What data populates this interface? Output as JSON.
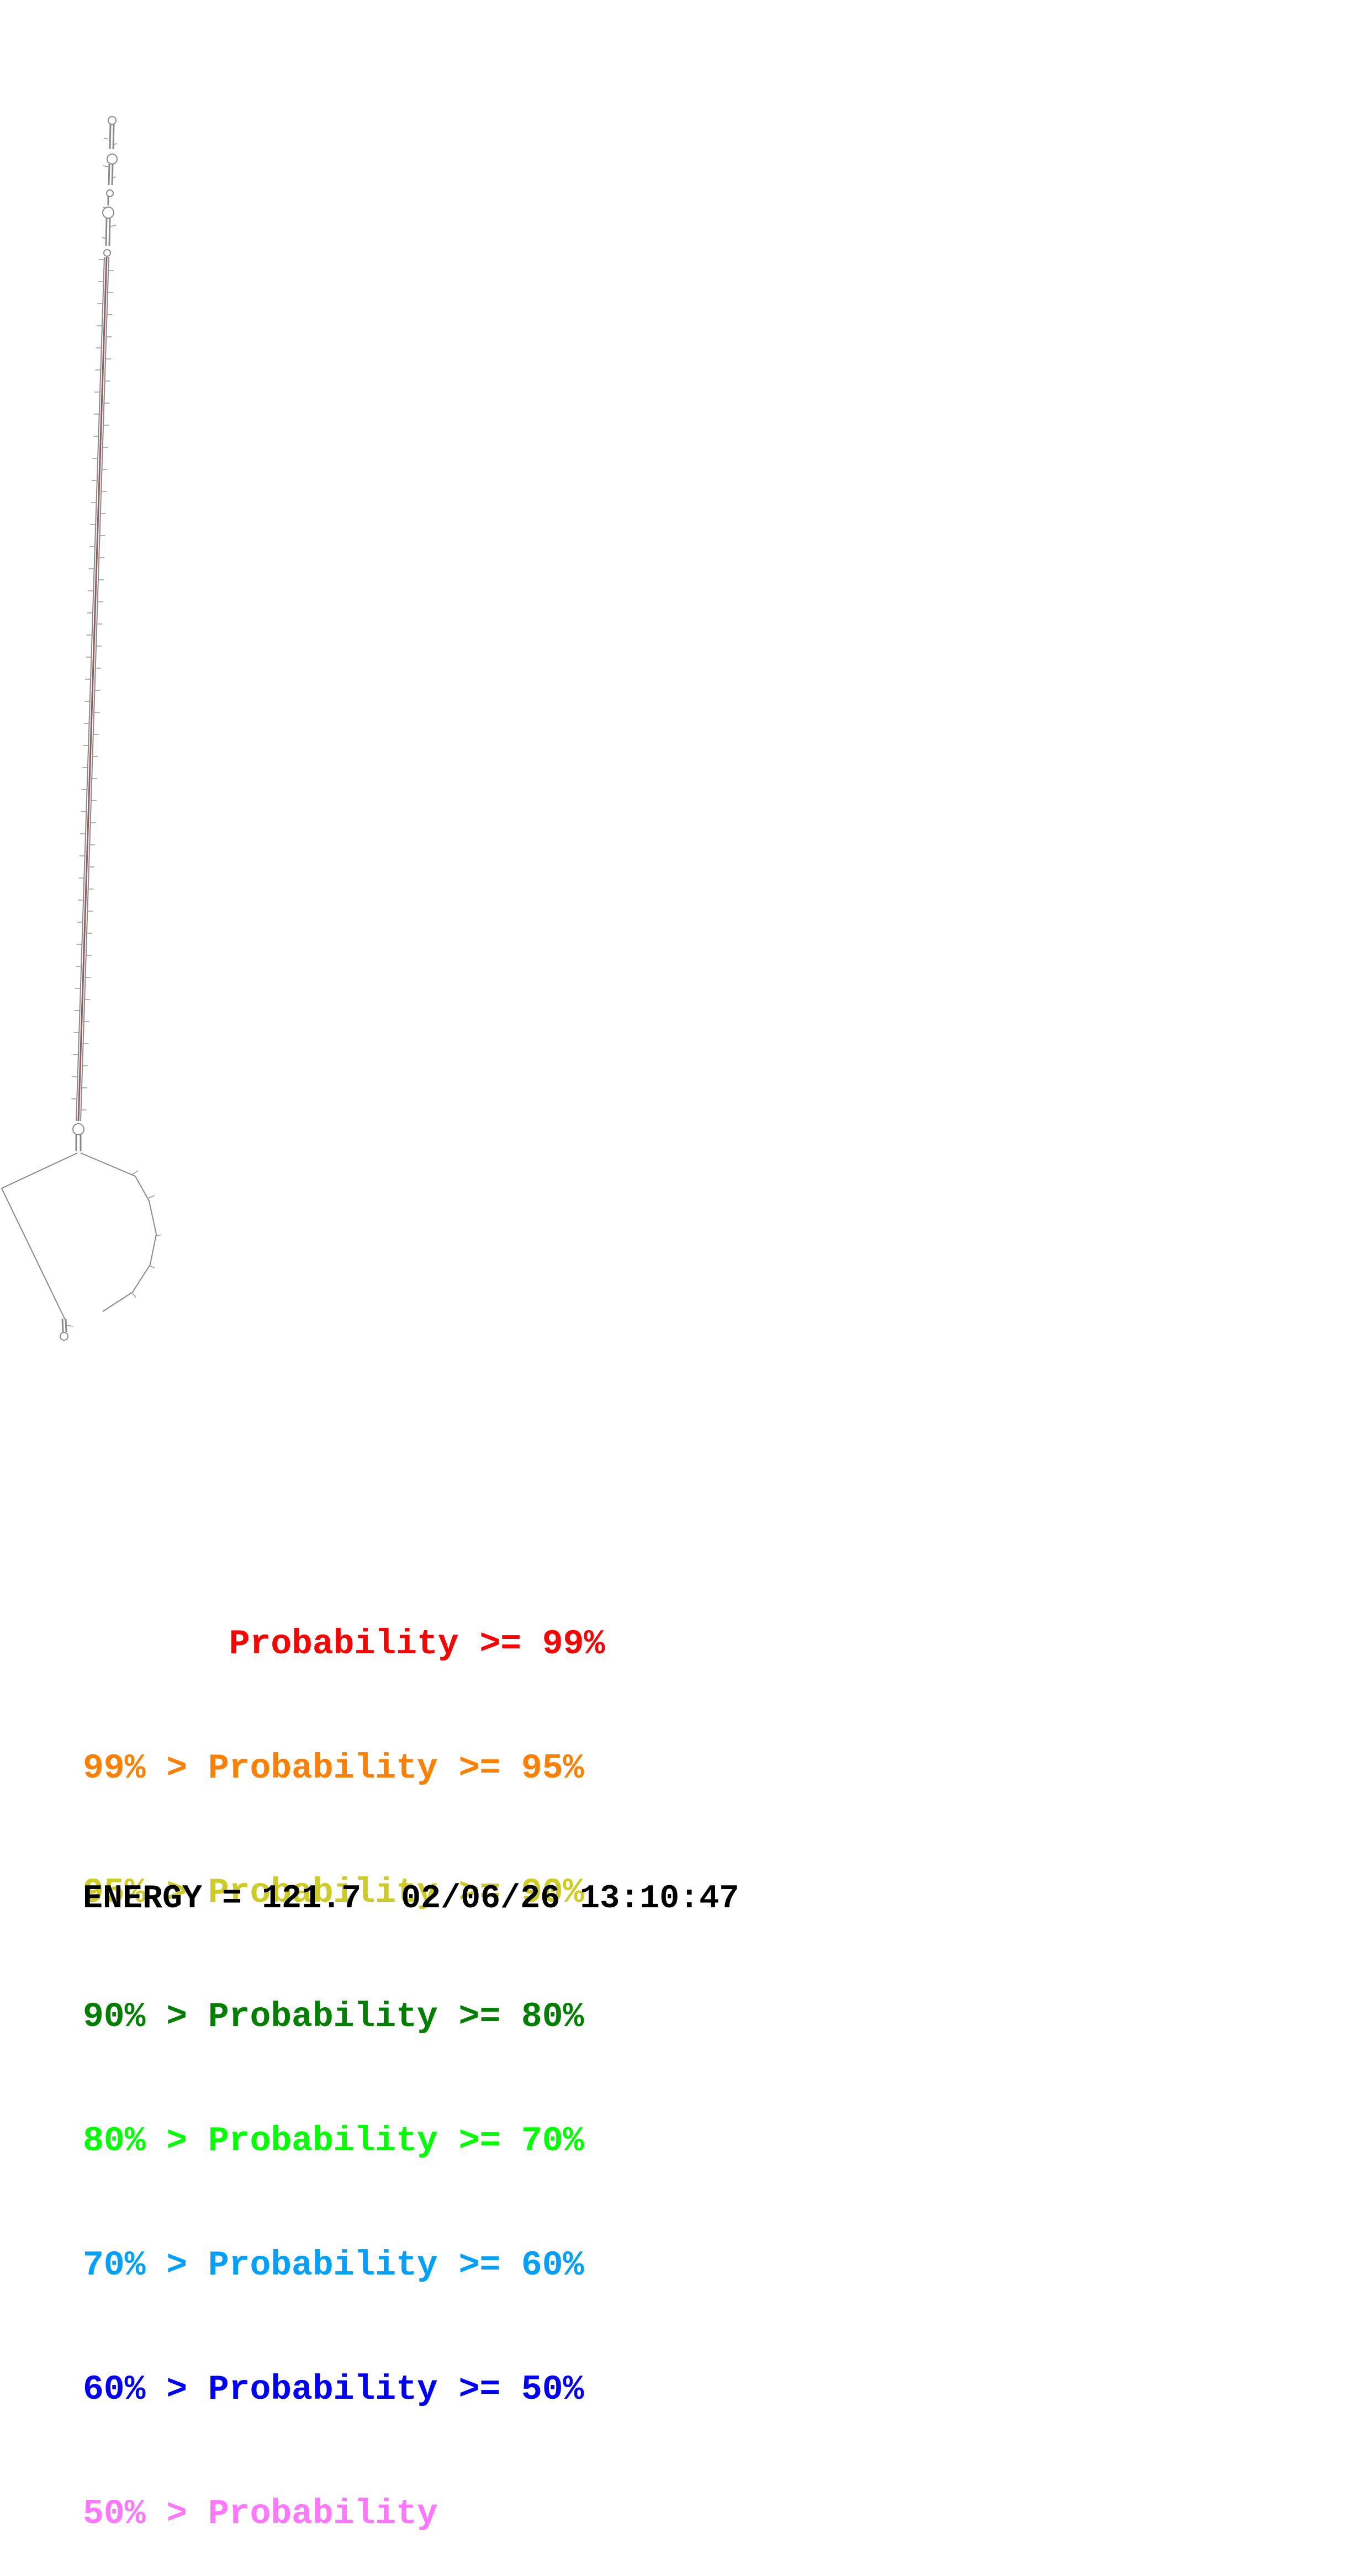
{
  "legend": [
    {
      "text": "       Probability >= 99%",
      "color": "#ff0000"
    },
    {
      "text": "99% > Probability >= 95%",
      "color": "#ff7f00"
    },
    {
      "text": "95% > Probability >= 90%",
      "color": "#cccc22"
    },
    {
      "text": "90% > Probability >= 80%",
      "color": "#007f00"
    },
    {
      "text": "80% > Probability >= 70%",
      "color": "#00ff00"
    },
    {
      "text": "70% > Probability >= 60%",
      "color": "#00a0ff"
    },
    {
      "text": "60% > Probability >= 50%",
      "color": "#0000ff"
    },
    {
      "text": "50% > Probability",
      "color": "#ff77ff"
    }
  ],
  "footer": {
    "energy_label": "ENERGY = 121.7",
    "timestamp": "02/06/26 13:10:47"
  },
  "colors": {
    "backbone": "#8a8a8a",
    "stem_pair": "#7f3f3f",
    "tick": "#999999"
  }
}
